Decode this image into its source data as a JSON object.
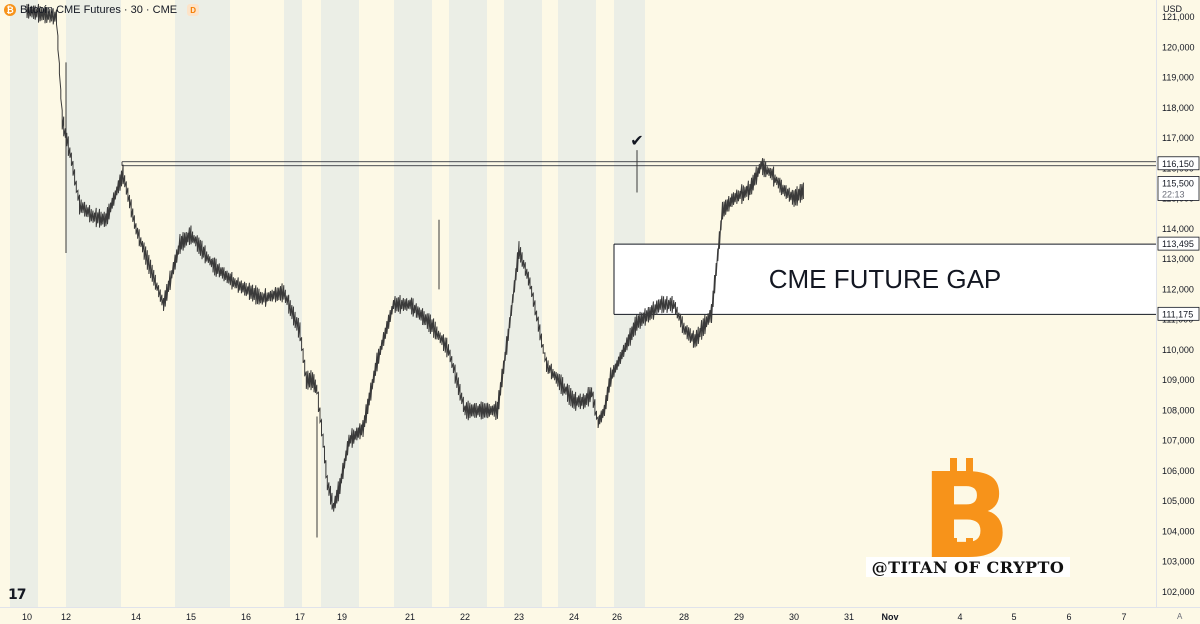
{
  "header": {
    "symbol_title": "Bitcoin CME Futures · 30 · CME",
    "badge": "D",
    "coin_glyph": "₿"
  },
  "axis": {
    "currency": "USD",
    "corner_mark": "A",
    "tv_logo": "17"
  },
  "annotation": {
    "gap_label": "CME FUTURE GAP",
    "brand_label": "@TITAN OF CRYPTO",
    "logo_glyph": "B",
    "logo_color": "#f7931a",
    "check_glyph": "✔"
  },
  "colors": {
    "background": "#fdf9e6",
    "weekend_band": "#ebeee6",
    "candles": "#3a3a3a",
    "grid_label": "#131722"
  },
  "chart_data": {
    "type": "line",
    "title": "Bitcoin CME Futures · 30 · CME",
    "xlabel": "",
    "ylabel": "",
    "ylim": [
      101700,
      121300
    ],
    "y_ticks": [
      102000,
      103000,
      104000,
      105000,
      106000,
      107000,
      108000,
      109000,
      110000,
      111000,
      112000,
      113000,
      114000,
      115000,
      116000,
      117000,
      118000,
      119000,
      120000,
      121000
    ],
    "x_ticks": [
      {
        "label": "10",
        "day": 10
      },
      {
        "label": "12",
        "day": 12
      },
      {
        "label": "14",
        "day": 14
      },
      {
        "label": "15",
        "day": 15
      },
      {
        "label": "16",
        "day": 16
      },
      {
        "label": "17",
        "day": 17
      },
      {
        "label": "19",
        "day": 19
      },
      {
        "label": "21",
        "day": 21
      },
      {
        "label": "22",
        "day": 22
      },
      {
        "label": "23",
        "day": 23
      },
      {
        "label": "24",
        "day": 24
      },
      {
        "label": "26",
        "day": 26
      },
      {
        "label": "28",
        "day": 28
      },
      {
        "label": "29",
        "day": 29
      },
      {
        "label": "30",
        "day": 30
      },
      {
        "label": "31",
        "day": 31
      },
      {
        "label": "Nov",
        "day": 32
      },
      {
        "label": "4",
        "day": 35
      },
      {
        "label": "5",
        "day": 36
      },
      {
        "label": "6",
        "day": 37
      },
      {
        "label": "7",
        "day": 38
      }
    ],
    "price_labels": [
      {
        "value": 116150,
        "text": "116,150"
      },
      {
        "value": 115500,
        "text": "115,500",
        "sub": "22:13"
      },
      {
        "value": 113495,
        "text": "113,495"
      },
      {
        "value": 111175,
        "text": "111,175"
      }
    ],
    "resistance": 116150,
    "gap": {
      "top": 113495,
      "bottom": 111175,
      "label": "CME FUTURE GAP"
    },
    "series": [
      {
        "values": [
          [
            9.5,
            121000
          ],
          [
            10.0,
            121200
          ],
          [
            11.5,
            121000
          ],
          [
            11.8,
            117600
          ],
          [
            12.2,
            116300
          ],
          [
            12.5,
            114800
          ],
          [
            13.0,
            114400
          ],
          [
            13.3,
            114300
          ],
          [
            13.7,
            115800
          ],
          [
            14.0,
            114000
          ],
          [
            14.5,
            111500
          ],
          [
            14.8,
            113500
          ],
          [
            15.0,
            113800
          ],
          [
            15.4,
            112800
          ],
          [
            15.8,
            112200
          ],
          [
            16.3,
            111700
          ],
          [
            16.7,
            111900
          ],
          [
            17.0,
            110600
          ],
          [
            17.3,
            109000
          ],
          [
            17.6,
            109000
          ],
          [
            17.8,
            108700
          ],
          [
            18.1,
            107000
          ],
          [
            18.3,
            105600
          ],
          [
            18.6,
            104800
          ],
          [
            18.9,
            105500
          ],
          [
            19.2,
            107000
          ],
          [
            19.6,
            107400
          ],
          [
            20.0,
            109600
          ],
          [
            20.5,
            111500
          ],
          [
            21.0,
            111500
          ],
          [
            21.4,
            110800
          ],
          [
            21.7,
            110000
          ],
          [
            22.0,
            108000
          ],
          [
            22.3,
            108000
          ],
          [
            22.6,
            108000
          ],
          [
            22.8,
            110500
          ],
          [
            23.0,
            113300
          ],
          [
            23.2,
            112200
          ],
          [
            23.5,
            109500
          ],
          [
            24.0,
            108300
          ],
          [
            24.5,
            108300
          ],
          [
            24.8,
            108600
          ],
          [
            25.1,
            107600
          ],
          [
            25.4,
            108000
          ],
          [
            25.7,
            109100
          ],
          [
            26.0,
            109500
          ],
          [
            26.3,
            110200
          ],
          [
            26.6,
            110900
          ],
          [
            27.0,
            111200
          ],
          [
            27.3,
            111500
          ],
          [
            27.7,
            111500
          ],
          [
            28.0,
            110700
          ],
          [
            28.2,
            110300
          ],
          [
            28.5,
            111200
          ],
          [
            28.7,
            114600
          ],
          [
            28.9,
            115000
          ],
          [
            29.2,
            115300
          ],
          [
            29.4,
            116100
          ],
          [
            29.6,
            115800
          ],
          [
            29.8,
            115300
          ],
          [
            30.0,
            115000
          ],
          [
            30.2,
            115300
          ]
        ]
      }
    ]
  }
}
